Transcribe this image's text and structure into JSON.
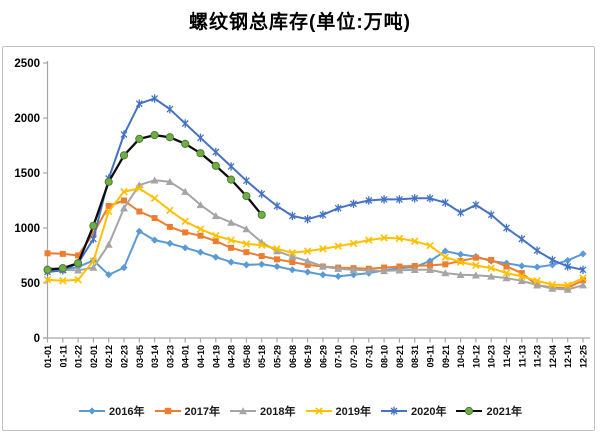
{
  "title": "螺纹钢总库存(单位:万吨)",
  "chart_data": {
    "type": "line",
    "title": "螺纹钢总库存(单位:万吨)",
    "ylabel": "万吨",
    "ylim": [
      0,
      2500
    ],
    "y_ticks": [
      0,
      500,
      1000,
      1500,
      2000,
      2500
    ],
    "grid": false,
    "legend_position": "bottom",
    "categories": [
      "01-01",
      "01-11",
      "01-22",
      "02-01",
      "02-12",
      "02-23",
      "03-05",
      "03-14",
      "03-23",
      "04-01",
      "04-10",
      "04-19",
      "04-28",
      "05-08",
      "05-18",
      "05-29",
      "06-08",
      "06-19",
      "06-29",
      "07-10",
      "07-20",
      "07-31",
      "08-10",
      "08-21",
      "08-31",
      "09-11",
      "09-21",
      "10-02",
      "10-12",
      "10-23",
      "11-02",
      "11-13",
      "11-23",
      "12-04",
      "12-14",
      "12-25"
    ],
    "series": [
      {
        "name": "2016年",
        "color": "#5B9BD5",
        "marker": "diamond",
        "values": [
          630,
          620,
          645,
          705,
          575,
          640,
          970,
          890,
          860,
          820,
          780,
          735,
          690,
          665,
          670,
          650,
          620,
          600,
          575,
          560,
          575,
          590,
          615,
          635,
          645,
          700,
          790,
          760,
          740,
          700,
          680,
          655,
          645,
          665,
          705,
          765
        ]
      },
      {
        "name": "2017年",
        "color": "#ED7D31",
        "marker": "square",
        "values": [
          770,
          765,
          750,
          950,
          1200,
          1250,
          1150,
          1090,
          1010,
          960,
          930,
          880,
          820,
          780,
          745,
          715,
          690,
          665,
          650,
          640,
          635,
          630,
          640,
          650,
          655,
          660,
          670,
          700,
          730,
          710,
          650,
          590,
          480,
          460,
          455,
          525
        ]
      },
      {
        "name": "2018年",
        "color": "#A5A5A5",
        "marker": "triangle",
        "values": [
          640,
          620,
          615,
          640,
          850,
          1180,
          1390,
          1434,
          1420,
          1330,
          1210,
          1110,
          1050,
          990,
          870,
          790,
          740,
          700,
          650,
          630,
          620,
          615,
          610,
          615,
          620,
          620,
          590,
          575,
          570,
          560,
          545,
          520,
          480,
          450,
          440,
          480
        ]
      },
      {
        "name": "2019年",
        "color": "#FFC000",
        "marker": "x",
        "values": [
          530,
          520,
          530,
          700,
          1150,
          1330,
          1360,
          1270,
          1160,
          1060,
          990,
          930,
          890,
          855,
          845,
          810,
          775,
          790,
          810,
          835,
          860,
          890,
          910,
          905,
          880,
          840,
          735,
          690,
          660,
          635,
          590,
          560,
          520,
          485,
          480,
          545
        ]
      },
      {
        "name": "2020年",
        "color": "#4472C4",
        "marker": "star",
        "values": [
          600,
          615,
          680,
          900,
          1450,
          1850,
          2130,
          2177,
          2080,
          1950,
          1820,
          1690,
          1560,
          1430,
          1310,
          1200,
          1110,
          1080,
          1120,
          1180,
          1220,
          1250,
          1260,
          1260,
          1270,
          1270,
          1230,
          1140,
          1210,
          1120,
          1000,
          900,
          795,
          710,
          650,
          620
        ]
      },
      {
        "name": "2021年",
        "color": "#70AD47",
        "marker": "circle",
        "line_color": "#0d0d0d",
        "values": [
          620,
          635,
          680,
          1020,
          1420,
          1660,
          1810,
          1845,
          1825,
          1765,
          1680,
          1565,
          1440,
          1290,
          1120
        ]
      }
    ]
  }
}
